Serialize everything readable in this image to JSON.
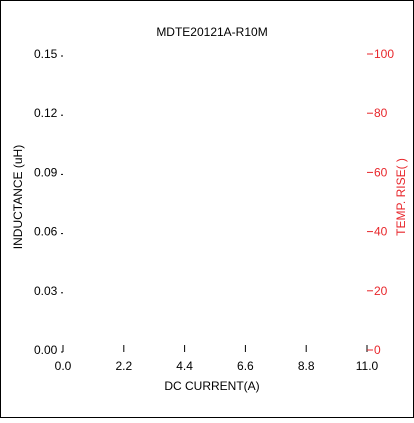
{
  "chart_data": {
    "type": "line",
    "title": "MDTE20121A-R10M",
    "xlabel": "DC CURRENT(A)",
    "ylabel": "INDUCTANCE (uH)",
    "y2label": "TEMP. RISE(   )",
    "x_ticks": [
      "0.0",
      "2.2",
      "4.4",
      "6.6",
      "8.8",
      "11.0"
    ],
    "y_ticks": [
      "0.00",
      "0.03",
      "0.06",
      "0.09",
      "0.12",
      "0.15"
    ],
    "y2_ticks": [
      "0",
      "20",
      "40",
      "60",
      "80",
      "100"
    ],
    "xlim": [
      0,
      11
    ],
    "ylim": [
      0,
      0.15
    ],
    "y2lim": [
      0,
      100
    ],
    "grid": false,
    "series": [],
    "colors": {
      "primary_axis": "#000000",
      "secondary_axis": "#e8262b",
      "frame": "#000000"
    }
  }
}
